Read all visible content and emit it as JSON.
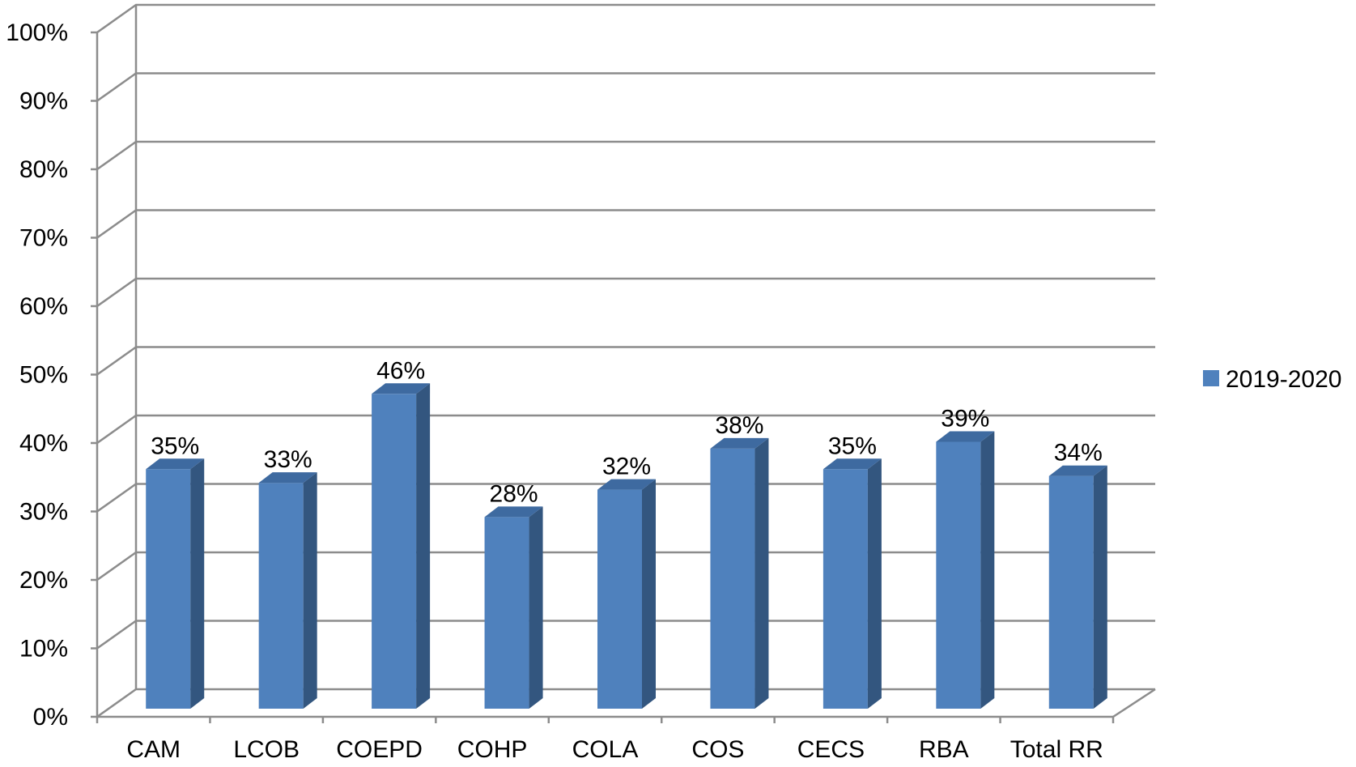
{
  "chart_data": {
    "type": "bar",
    "categories": [
      "CAM",
      "LCOB",
      "COEPD",
      "COHP",
      "COLA",
      "COS",
      "CECS",
      "RBA",
      "Total RR"
    ],
    "series": [
      {
        "name": "2019-2020",
        "values": [
          35,
          33,
          46,
          28,
          32,
          38,
          35,
          39,
          34
        ],
        "labels": [
          "35%",
          "33%",
          "46%",
          "28%",
          "32%",
          "38%",
          "35%",
          "39%",
          "34%"
        ],
        "color": "#4f81bd",
        "side_color": "#33567f",
        "top_color": "#3e6aa0"
      }
    ],
    "y_ticks": [
      "0%",
      "10%",
      "20%",
      "30%",
      "40%",
      "50%",
      "60%",
      "70%",
      "80%",
      "90%",
      "100%"
    ],
    "ylim": [
      0,
      100
    ],
    "grid": true,
    "legend": "right",
    "style": "3d-column"
  }
}
